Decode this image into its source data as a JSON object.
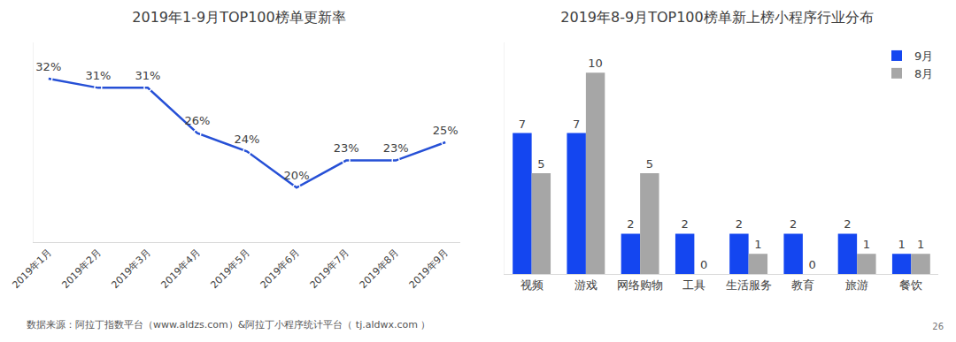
{
  "chart_data": [
    {
      "type": "line",
      "title": "2019年1-9月TOP100榜单更新率",
      "categories": [
        "2019年1月",
        "2019年2月",
        "2019年3月",
        "2019年4月",
        "2019年5月",
        "2019年6月",
        "2019年7月",
        "2019年8月",
        "2019年9月"
      ],
      "values": [
        32,
        31,
        31,
        26,
        24,
        20,
        23,
        23,
        25
      ],
      "value_labels": [
        "32%",
        "31%",
        "31%",
        "26%",
        "24%",
        "20%",
        "23%",
        "23%",
        "25%"
      ],
      "color": "#2650d6",
      "marker": "circle-open",
      "ylim": [
        14,
        36
      ],
      "yticks": [],
      "grid": false,
      "data_labels": true,
      "tick_labels": "x"
    },
    {
      "type": "bar",
      "title": "2019年8-9月TOP100榜单新上榜小程序行业分布",
      "categories": [
        "视频",
        "游戏",
        "网络购物",
        "工具",
        "生活服务",
        "教育",
        "旅游",
        "餐饮"
      ],
      "series": [
        {
          "name": "9月",
          "color": "#1446f0",
          "values": [
            7,
            7,
            2,
            2,
            2,
            2,
            2,
            1
          ]
        },
        {
          "name": "8月",
          "color": "#a6a6a6",
          "values": [
            5,
            10,
            5,
            0,
            1,
            0,
            1,
            1
          ]
        }
      ],
      "ylim": [
        0,
        11.5
      ],
      "yticks": [],
      "grid": false,
      "data_labels": true,
      "tick_labels": "x",
      "legend": "top right"
    }
  ],
  "source": "数据来源：阿拉丁指数平台（www.aldzs.com）&阿拉丁小程序统计平台（ tj.aldwx.com ）",
  "page": 26
}
